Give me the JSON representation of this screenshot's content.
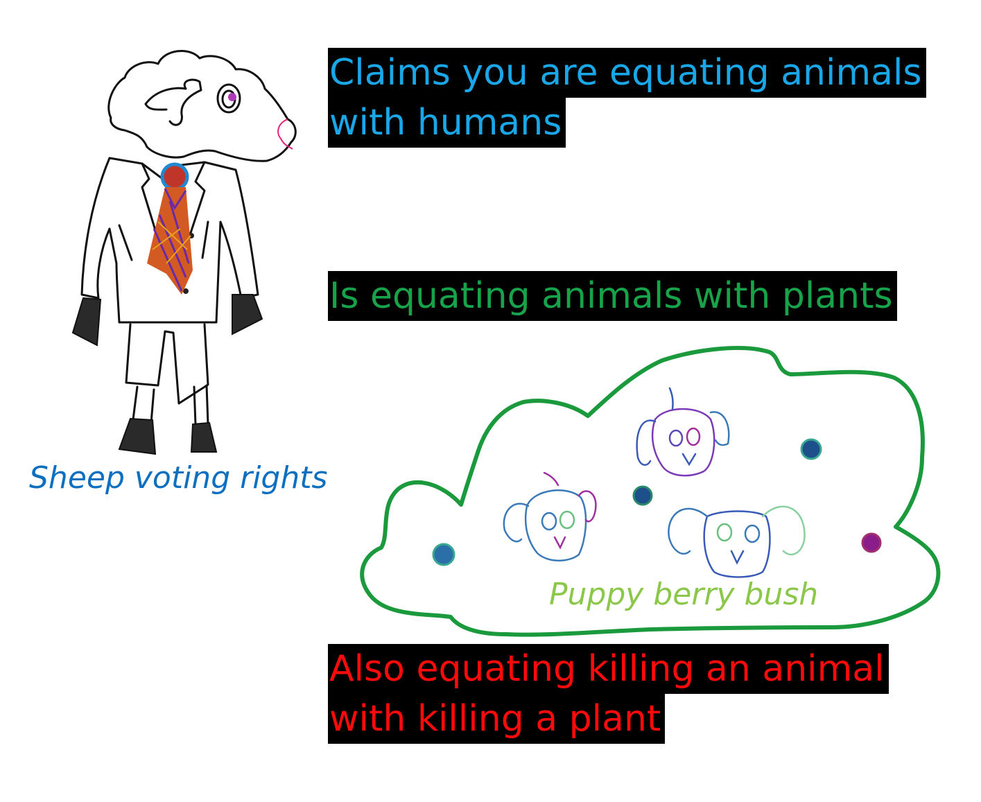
{
  "captions": {
    "claim1": [
      "Claims you are equating animals",
      "with humans"
    ],
    "claim2": "Is equating animals with plants",
    "claim3": [
      "Also equating killing an animal",
      "with killing a plant"
    ],
    "sheep_label": "Sheep voting rights",
    "bush_label": "Puppy berry bush"
  },
  "colors": {
    "claim1": "#1aa7e8",
    "claim2": "#16a34a",
    "claim3": "#ff0a0a",
    "sheep_label": "#0c6fc0",
    "bush_label": "#8bc84a",
    "bush_outline": "#1a9a3c"
  },
  "icons": [
    "sheep-in-suit-drawing",
    "puppy-berry-bush-drawing"
  ]
}
